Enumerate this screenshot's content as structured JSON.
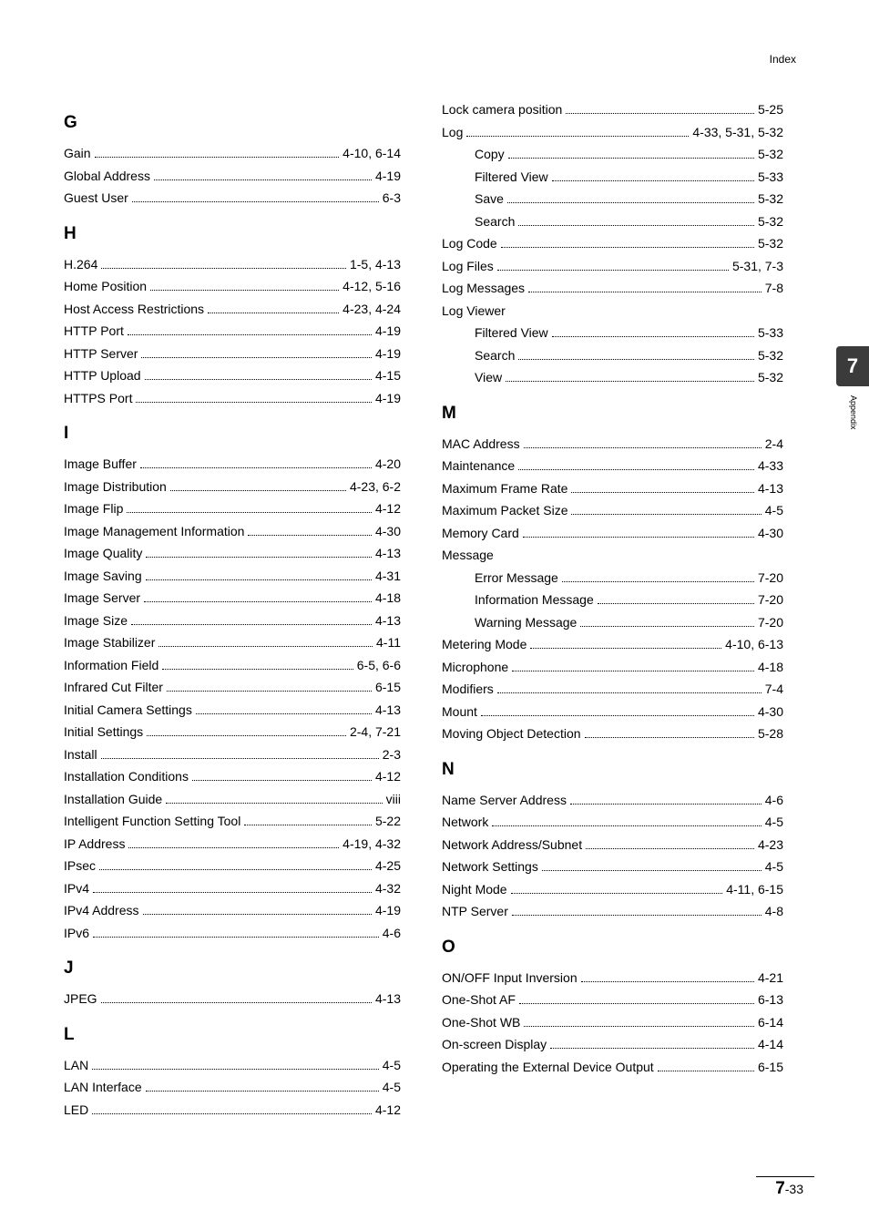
{
  "header": {
    "label": "Index"
  },
  "tab": {
    "number": "7",
    "label": "Appendix"
  },
  "footer": {
    "chapter": "7",
    "page": "-33"
  },
  "left": [
    {
      "type": "head",
      "text": "G"
    },
    {
      "type": "entry",
      "term": "Gain",
      "pages": "4-10, 6-14"
    },
    {
      "type": "entry",
      "term": "Global Address",
      "pages": "4-19"
    },
    {
      "type": "entry",
      "term": "Guest User",
      "pages": "6-3"
    },
    {
      "type": "head",
      "text": "H"
    },
    {
      "type": "entry",
      "term": "H.264",
      "pages": "1-5, 4-13"
    },
    {
      "type": "entry",
      "term": "Home Position",
      "pages": "4-12, 5-16"
    },
    {
      "type": "entry",
      "term": "Host Access Restrictions",
      "pages": "4-23, 4-24"
    },
    {
      "type": "entry",
      "term": "HTTP Port",
      "pages": "4-19"
    },
    {
      "type": "entry",
      "term": "HTTP Server",
      "pages": "4-19"
    },
    {
      "type": "entry",
      "term": "HTTP Upload",
      "pages": "4-15"
    },
    {
      "type": "entry",
      "term": "HTTPS Port",
      "pages": "4-19"
    },
    {
      "type": "head",
      "text": "I"
    },
    {
      "type": "entry",
      "term": "Image Buffer",
      "pages": "4-20"
    },
    {
      "type": "entry",
      "term": "Image Distribution",
      "pages": "4-23, 6-2"
    },
    {
      "type": "entry",
      "term": "Image Flip",
      "pages": "4-12"
    },
    {
      "type": "entry",
      "term": "Image Management Information",
      "pages": "4-30"
    },
    {
      "type": "entry",
      "term": "Image Quality",
      "pages": "4-13"
    },
    {
      "type": "entry",
      "term": "Image Saving",
      "pages": "4-31"
    },
    {
      "type": "entry",
      "term": "Image Server",
      "pages": "4-18"
    },
    {
      "type": "entry",
      "term": "Image Size",
      "pages": "4-13"
    },
    {
      "type": "entry",
      "term": "Image Stabilizer",
      "pages": "4-11"
    },
    {
      "type": "entry",
      "term": "Information Field",
      "pages": "6-5, 6-6"
    },
    {
      "type": "entry",
      "term": "Infrared Cut Filter",
      "pages": "6-15"
    },
    {
      "type": "entry",
      "term": "Initial Camera Settings",
      "pages": "4-13"
    },
    {
      "type": "entry",
      "term": "Initial Settings",
      "pages": "2-4, 7-21"
    },
    {
      "type": "entry",
      "term": "Install",
      "pages": "2-3"
    },
    {
      "type": "entry",
      "term": "Installation Conditions",
      "pages": "4-12"
    },
    {
      "type": "entry",
      "term": "Installation Guide",
      "pages": "viii"
    },
    {
      "type": "entry",
      "term": "Intelligent Function Setting Tool",
      "pages": "5-22"
    },
    {
      "type": "entry",
      "term": "IP Address",
      "pages": "4-19, 4-32"
    },
    {
      "type": "entry",
      "term": "IPsec",
      "pages": "4-25"
    },
    {
      "type": "entry",
      "term": "IPv4",
      "pages": "4-32"
    },
    {
      "type": "entry",
      "term": "IPv4 Address",
      "pages": "4-19"
    },
    {
      "type": "entry",
      "term": "IPv6",
      "pages": "4-6"
    },
    {
      "type": "head",
      "text": "J"
    },
    {
      "type": "entry",
      "term": "JPEG",
      "pages": "4-13"
    },
    {
      "type": "head",
      "text": "L"
    },
    {
      "type": "entry",
      "term": "LAN",
      "pages": "4-5"
    },
    {
      "type": "entry",
      "term": "LAN Interface",
      "pages": "4-5"
    },
    {
      "type": "entry",
      "term": "LED",
      "pages": "4-12"
    }
  ],
  "right": [
    {
      "type": "entry",
      "term": "Lock camera position",
      "pages": "5-25"
    },
    {
      "type": "entry",
      "term": "Log",
      "pages": "4-33, 5-31, 5-32"
    },
    {
      "type": "sub",
      "term": "Copy",
      "pages": "5-32"
    },
    {
      "type": "sub",
      "term": "Filtered View",
      "pages": "5-33"
    },
    {
      "type": "sub",
      "term": "Save",
      "pages": "5-32"
    },
    {
      "type": "sub",
      "term": "Search",
      "pages": "5-32"
    },
    {
      "type": "entry",
      "term": "Log Code",
      "pages": "5-32"
    },
    {
      "type": "entry",
      "term": "Log Files",
      "pages": "5-31, 7-3"
    },
    {
      "type": "entry",
      "term": "Log Messages",
      "pages": "7-8"
    },
    {
      "type": "label",
      "term": "Log Viewer"
    },
    {
      "type": "sub",
      "term": "Filtered View",
      "pages": "5-33"
    },
    {
      "type": "sub",
      "term": "Search",
      "pages": "5-32"
    },
    {
      "type": "sub",
      "term": "View",
      "pages": "5-32"
    },
    {
      "type": "head",
      "text": "M"
    },
    {
      "type": "entry",
      "term": "MAC Address",
      "pages": "2-4"
    },
    {
      "type": "entry",
      "term": "Maintenance",
      "pages": "4-33"
    },
    {
      "type": "entry",
      "term": "Maximum Frame Rate",
      "pages": "4-13"
    },
    {
      "type": "entry",
      "term": "Maximum Packet Size",
      "pages": "4-5"
    },
    {
      "type": "entry",
      "term": "Memory Card",
      "pages": "4-30"
    },
    {
      "type": "label",
      "term": "Message"
    },
    {
      "type": "sub",
      "term": "Error Message",
      "pages": "7-20"
    },
    {
      "type": "sub",
      "term": "Information Message",
      "pages": "7-20"
    },
    {
      "type": "sub",
      "term": "Warning Message",
      "pages": "7-20"
    },
    {
      "type": "entry",
      "term": "Metering Mode",
      "pages": "4-10, 6-13"
    },
    {
      "type": "entry",
      "term": "Microphone",
      "pages": "4-18"
    },
    {
      "type": "entry",
      "term": "Modifiers",
      "pages": "7-4"
    },
    {
      "type": "entry",
      "term": "Mount",
      "pages": "4-30"
    },
    {
      "type": "entry",
      "term": "Moving Object Detection",
      "pages": "5-28"
    },
    {
      "type": "head",
      "text": "N"
    },
    {
      "type": "entry",
      "term": "Name Server Address",
      "pages": "4-6"
    },
    {
      "type": "entry",
      "term": "Network",
      "pages": "4-5"
    },
    {
      "type": "entry",
      "term": "Network Address/Subnet",
      "pages": "4-23"
    },
    {
      "type": "entry",
      "term": "Network Settings",
      "pages": "4-5"
    },
    {
      "type": "entry",
      "term": "Night Mode",
      "pages": "4-11, 6-15"
    },
    {
      "type": "entry",
      "term": "NTP Server",
      "pages": "4-8"
    },
    {
      "type": "head",
      "text": "O"
    },
    {
      "type": "entry",
      "term": "ON/OFF Input Inversion",
      "pages": "4-21"
    },
    {
      "type": "entry",
      "term": "One-Shot AF",
      "pages": "6-13"
    },
    {
      "type": "entry",
      "term": "One-Shot WB",
      "pages": "6-14"
    },
    {
      "type": "entry",
      "term": "On-screen Display",
      "pages": "4-14"
    },
    {
      "type": "entry",
      "term": "Operating the External Device Output",
      "pages": "6-15"
    }
  ]
}
